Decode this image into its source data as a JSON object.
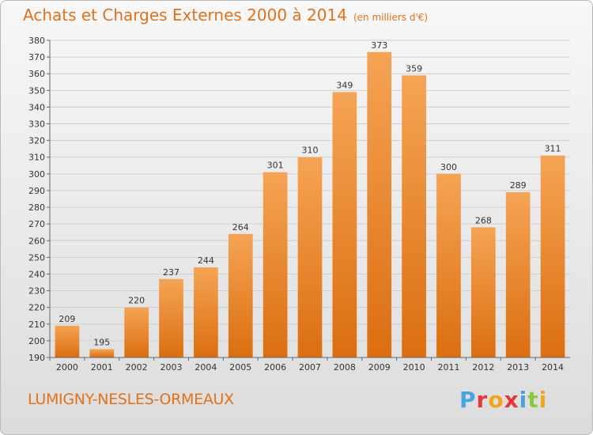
{
  "chart_data": {
    "type": "bar",
    "title": "Achats et Charges Externes 2000 à 2014",
    "unit_label": "(en milliers d'€)",
    "categories": [
      "2000",
      "2001",
      "2002",
      "2003",
      "2004",
      "2005",
      "2006",
      "2007",
      "2008",
      "2009",
      "2010",
      "2011",
      "2012",
      "2013",
      "2014"
    ],
    "values": [
      209,
      195,
      220,
      237,
      244,
      264,
      301,
      310,
      349,
      373,
      359,
      300,
      268,
      289,
      311
    ],
    "ylim": [
      190,
      380
    ],
    "yticks": [
      190,
      200,
      210,
      220,
      230,
      240,
      250,
      260,
      270,
      280,
      290,
      300,
      310,
      320,
      330,
      340,
      350,
      360,
      370,
      380
    ],
    "grid": true,
    "bar_color_top": "#f5a455",
    "bar_color_bottom": "#db6e10"
  },
  "footer": {
    "commune": "LUMIGNY-NESLES-ORMEAUX",
    "logo_text": "Proxiti",
    "logo_colors": [
      "#4aa3df",
      "#e23a3a",
      "#f0a51e",
      "#e23a3a",
      "#4aa3df",
      "#8dc63f",
      "#f0a51e"
    ]
  }
}
